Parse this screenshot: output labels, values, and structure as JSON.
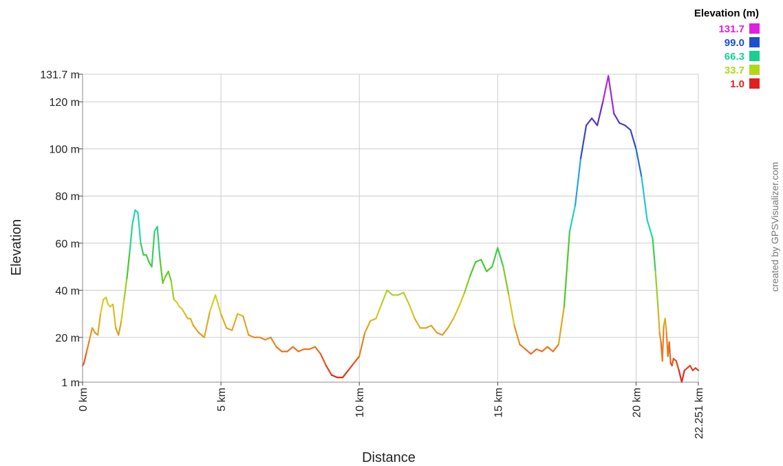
{
  "chart_data": {
    "type": "line",
    "xlabel": "Distance",
    "ylabel": "Elevation",
    "xlim": [
      0,
      22.251
    ],
    "ylim": [
      1,
      131.7
    ],
    "x_ticks": [
      {
        "value": 0,
        "label": "0 km"
      },
      {
        "value": 5,
        "label": "5 km"
      },
      {
        "value": 10,
        "label": "10 km"
      },
      {
        "value": 15,
        "label": "15 km"
      },
      {
        "value": 20,
        "label": "20 km"
      },
      {
        "value": 22.251,
        "label": "22.251 km"
      }
    ],
    "y_ticks": [
      {
        "value": 1,
        "label": "1 m"
      },
      {
        "value": 20,
        "label": "20 m"
      },
      {
        "value": 40,
        "label": "40 m"
      },
      {
        "value": 60,
        "label": "60 m"
      },
      {
        "value": 80,
        "label": "80 m"
      },
      {
        "value": 100,
        "label": "100 m"
      },
      {
        "value": 120,
        "label": "120 m"
      },
      {
        "value": 131.7,
        "label": "131.7 m"
      }
    ],
    "grid": true,
    "legend": {
      "title": "Elevation (m)",
      "placement": "top-right",
      "entries": [
        {
          "label": "131.7",
          "color": "#e020e0"
        },
        {
          "label": "99.0",
          "color": "#1c50d0"
        },
        {
          "label": "66.3",
          "color": "#18d090"
        },
        {
          "label": "33.7",
          "color": "#b0d818"
        },
        {
          "label": "1.0",
          "color": "#e02020"
        }
      ]
    },
    "color_scale": {
      "values": [
        1,
        17,
        33.7,
        50,
        66.3,
        82,
        99,
        115,
        131.7
      ],
      "colors": [
        "#e01818",
        "#e88020",
        "#d8d020",
        "#48c828",
        "#20d8a8",
        "#20c0e8",
        "#1c50d0",
        "#6030c8",
        "#e020e0"
      ]
    },
    "x": [
      0,
      0.05,
      0.15,
      0.25,
      0.35,
      0.45,
      0.55,
      0.65,
      0.75,
      0.85,
      0.92,
      1.0,
      1.1,
      1.2,
      1.3,
      1.4,
      1.5,
      1.6,
      1.7,
      1.8,
      1.9,
      2.0,
      2.1,
      2.2,
      2.3,
      2.4,
      2.5,
      2.6,
      2.7,
      2.8,
      2.9,
      3.0,
      3.1,
      3.2,
      3.3,
      3.4,
      3.5,
      3.6,
      3.7,
      3.8,
      3.9,
      4.0,
      4.2,
      4.4,
      4.6,
      4.8,
      5.0,
      5.2,
      5.4,
      5.6,
      5.8,
      6.0,
      6.2,
      6.4,
      6.6,
      6.8,
      7.0,
      7.2,
      7.4,
      7.6,
      7.8,
      8.0,
      8.2,
      8.4,
      8.6,
      8.8,
      9.0,
      9.2,
      9.4,
      9.6,
      9.8,
      10.0,
      10.2,
      10.4,
      10.6,
      10.8,
      11.0,
      11.2,
      11.4,
      11.6,
      11.8,
      12.0,
      12.2,
      12.4,
      12.6,
      12.8,
      13.0,
      13.2,
      13.4,
      13.6,
      13.8,
      14.0,
      14.2,
      14.4,
      14.6,
      14.8,
      15.0,
      15.2,
      15.4,
      15.6,
      15.8,
      16.0,
      16.2,
      16.4,
      16.6,
      16.8,
      17.0,
      17.2,
      17.4,
      17.6,
      17.8,
      18.0,
      18.2,
      18.4,
      18.6,
      18.8,
      19.0,
      19.2,
      19.4,
      19.6,
      19.8,
      20.0,
      20.2,
      20.4,
      20.6,
      20.7,
      20.8,
      20.85,
      20.9,
      20.95,
      21.0,
      21.05,
      21.1,
      21.15,
      21.2,
      21.25,
      21.3,
      21.35,
      21.45,
      21.55,
      21.65,
      21.75,
      21.85,
      21.95,
      22.05,
      22.15,
      22.251
    ],
    "y": [
      8,
      9,
      14,
      19,
      24,
      22,
      21,
      30,
      36,
      37,
      34,
      33,
      34,
      24,
      21,
      27,
      36,
      45,
      56,
      68,
      74,
      73,
      60,
      55,
      55,
      52,
      50,
      65,
      67,
      53,
      43,
      46,
      48,
      44,
      36,
      35,
      33,
      32,
      30,
      28,
      28,
      25,
      22,
      20,
      31,
      38,
      30,
      24,
      23,
      30,
      29,
      21,
      20,
      20,
      19,
      20,
      16,
      14,
      14,
      16,
      14,
      15,
      15,
      16,
      13,
      8,
      4,
      3,
      3,
      6,
      9,
      12,
      22,
      27,
      28,
      34,
      40,
      38,
      38,
      39,
      34,
      28,
      24,
      24,
      25,
      22,
      21,
      24,
      28,
      33,
      39,
      46,
      52,
      53,
      48,
      50,
      58,
      50,
      38,
      25,
      17,
      15,
      13,
      15,
      14,
      16,
      14,
      17,
      33,
      65,
      76,
      96,
      110,
      113,
      110,
      120,
      131,
      115,
      111,
      110,
      108,
      100,
      88,
      70,
      62,
      48,
      32,
      22,
      18,
      10,
      25,
      28,
      22,
      12,
      18,
      9,
      8,
      11,
      10,
      6,
      1,
      6,
      7,
      8,
      6,
      7,
      6
    ]
  },
  "credit": "created by GPSVisualizer.com"
}
